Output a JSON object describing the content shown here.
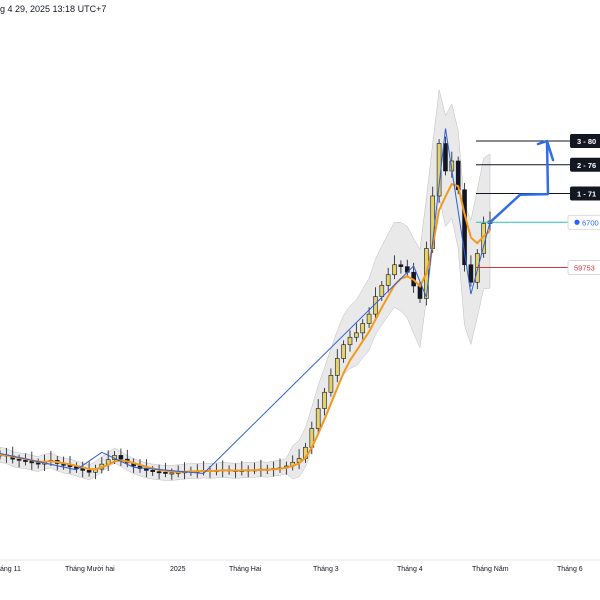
{
  "header": {
    "timestamp": "g 4 29, 2025 13:18 UTC+7"
  },
  "colors": {
    "candle_up": "#e3d36a",
    "candle_down": "#131722",
    "ema": "#f39a1e",
    "band_fill": "#e0e0e0",
    "zigzag": "#2f5fd6",
    "projection": "#2f6ee6",
    "level_line": "#131722",
    "current_line": "#2bbfb3",
    "stop_line": "#d9343c",
    "current_tag": "#2962ff",
    "stop_tag_text": "#d9343c"
  },
  "icons": {
    "current_tag_marker": "circle-dot-icon"
  },
  "chart_data": {
    "type": "candlestick",
    "title": "",
    "xlabel": "",
    "ylabel": "",
    "grid": false,
    "legend": "none",
    "x_tick_labels": [
      "áng 11",
      "Tháng Mười hai",
      "2025",
      "Tháng Hai",
      "Tháng 3",
      "Tháng 4",
      "Tháng Năm",
      "Tháng 6"
    ],
    "levels": [
      {
        "name": "3",
        "label": "3 - 80",
        "value": 80000
      },
      {
        "name": "2",
        "label": "2 - 76",
        "value": 76200
      },
      {
        "name": "1",
        "label": "1 - 71",
        "value": 71600
      }
    ],
    "current_price_label": "6700",
    "current_price": 67000,
    "stop_label": "59753",
    "stop_price": 59753,
    "projection": [
      67000,
      71400,
      71500,
      80000
    ]
  }
}
